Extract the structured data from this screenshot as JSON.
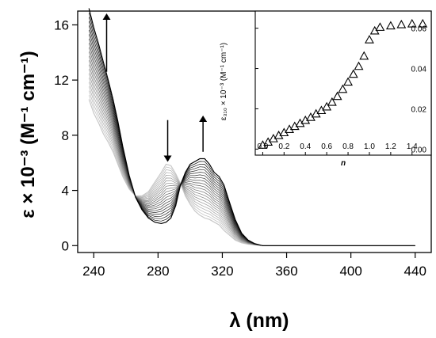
{
  "chart_data": [
    {
      "type": "line",
      "xlabel": "λ (nm)",
      "ylabel": "ε × 10⁻³ (M⁻¹ cm⁻¹)",
      "xlim": [
        230,
        450
      ],
      "ylim": [
        -0.5,
        17
      ],
      "xticks": [
        "240",
        "280",
        "320",
        "360",
        "400",
        "440"
      ],
      "yticks": [
        "0",
        "4",
        "8",
        "12",
        "16"
      ],
      "grid": false,
      "num_traces": 22,
      "trace_color_start": "#c8c8c8",
      "trace_color_end": "#000000",
      "series": [
        {
          "x": [
            237,
            240,
            243,
            246,
            249,
            252,
            255,
            258,
            262,
            266,
            270,
            274,
            278,
            282,
            285,
            288,
            291,
            294,
            297,
            300,
            303,
            306,
            309,
            312,
            315,
            318,
            321,
            324,
            328,
            332,
            336,
            340,
            345,
            350,
            360,
            380,
            400,
            420,
            440
          ],
          "y": [
            10.6,
            9.6,
            8.9,
            8.1,
            7.5,
            6.8,
            5.9,
            5.0,
            4.1,
            3.6,
            3.6,
            3.9,
            4.6,
            5.3,
            5.9,
            5.8,
            5.2,
            4.5,
            3.6,
            3.0,
            2.5,
            2.2,
            2.0,
            1.9,
            1.7,
            1.5,
            1.1,
            0.8,
            0.4,
            0.2,
            0.1,
            0.05,
            0,
            0,
            0,
            0,
            0,
            0,
            0
          ]
        },
        {
          "x": [
            237,
            240,
            243,
            246,
            249,
            252,
            255,
            258,
            262,
            266,
            270,
            274,
            278,
            282,
            285,
            288,
            291,
            294,
            297,
            300,
            303,
            306,
            309,
            312,
            315,
            318,
            321,
            324,
            328,
            332,
            336,
            340,
            345,
            350,
            360,
            380,
            400,
            420,
            440
          ],
          "y": [
            17.2,
            15.8,
            14.6,
            13.3,
            12.0,
            10.6,
            9.0,
            7.2,
            5.1,
            3.5,
            2.6,
            2.0,
            1.7,
            1.6,
            1.7,
            2.0,
            2.9,
            4.4,
            5.3,
            5.9,
            6.1,
            6.3,
            6.3,
            5.9,
            5.3,
            5.0,
            4.4,
            3.3,
            1.9,
            0.9,
            0.4,
            0.15,
            0,
            0,
            0,
            0,
            0,
            0,
            0
          ]
        }
      ],
      "annotations": [
        {
          "type": "arrow",
          "direction": "up",
          "x": 248,
          "y_from": 12.6,
          "y_to": 16.6
        },
        {
          "type": "arrow",
          "direction": "down",
          "x": 286,
          "y_from": 9.1,
          "y_to": 6.3
        },
        {
          "type": "arrow",
          "direction": "up",
          "x": 308,
          "y_from": 6.8,
          "y_to": 9.2
        }
      ]
    },
    {
      "type": "scatter",
      "marker": "open-triangle",
      "xlabel": "n",
      "ylabel": "ε₃₁₀ × 10⁻³ (M⁻¹ cm⁻¹)",
      "xlim": [
        -0.07,
        1.58
      ],
      "ylim": [
        -0.003,
        0.0685
      ],
      "xticks": [
        "0.0",
        "0.2",
        "0.4",
        "0.6",
        "0.8",
        "1.0",
        "1.2",
        "1.4"
      ],
      "yticks": [
        "0.00",
        "0.02",
        "0.04",
        "0.06"
      ],
      "x": [
        0.0,
        0.05,
        0.1,
        0.15,
        0.2,
        0.25,
        0.3,
        0.35,
        0.4,
        0.45,
        0.5,
        0.55,
        0.6,
        0.65,
        0.7,
        0.75,
        0.8,
        0.85,
        0.9,
        0.95,
        1.0,
        1.05,
        1.1,
        1.2,
        1.3,
        1.4,
        1.5
      ],
      "y": [
        0.002,
        0.0035,
        0.0052,
        0.0068,
        0.0082,
        0.0098,
        0.0113,
        0.0128,
        0.0143,
        0.0158,
        0.0175,
        0.0192,
        0.021,
        0.0233,
        0.0262,
        0.0297,
        0.0333,
        0.0372,
        0.0411,
        0.0462,
        0.0543,
        0.0587,
        0.0605,
        0.0612,
        0.0618,
        0.0622,
        0.0622
      ]
    }
  ]
}
